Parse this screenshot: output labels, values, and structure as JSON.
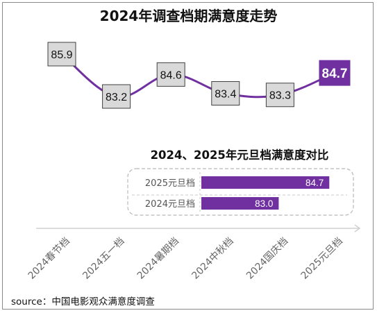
{
  "title": "2024年调查档期满意度走势",
  "source": "source：中国电影观众满意度调查",
  "colors": {
    "accent": "#7030a0",
    "box_fill": "#d9d9d9",
    "box_border": "#404040",
    "axis": "#d0d0d0"
  },
  "chart_data": [
    {
      "type": "line",
      "title": "2024年调查档期满意度走势",
      "categories": [
        "2024春节档",
        "2024五一档",
        "2024暑期档",
        "2024中秋档",
        "2024国庆档",
        "2025元旦档"
      ],
      "values": [
        85.9,
        83.2,
        84.6,
        83.4,
        83.3,
        84.7
      ],
      "highlight_index": 5,
      "ylim": [
        82.2,
        86.6
      ],
      "xlabel": "",
      "ylabel": ""
    },
    {
      "type": "bar",
      "orientation": "horizontal",
      "title": "2024、2025年元旦档满意度对比",
      "categories": [
        "2025元旦档",
        "2024元旦档"
      ],
      "values": [
        84.7,
        83.0
      ],
      "value_labels": [
        "84.7",
        "83.0"
      ],
      "xlim": [
        80.4,
        85.3
      ]
    }
  ]
}
